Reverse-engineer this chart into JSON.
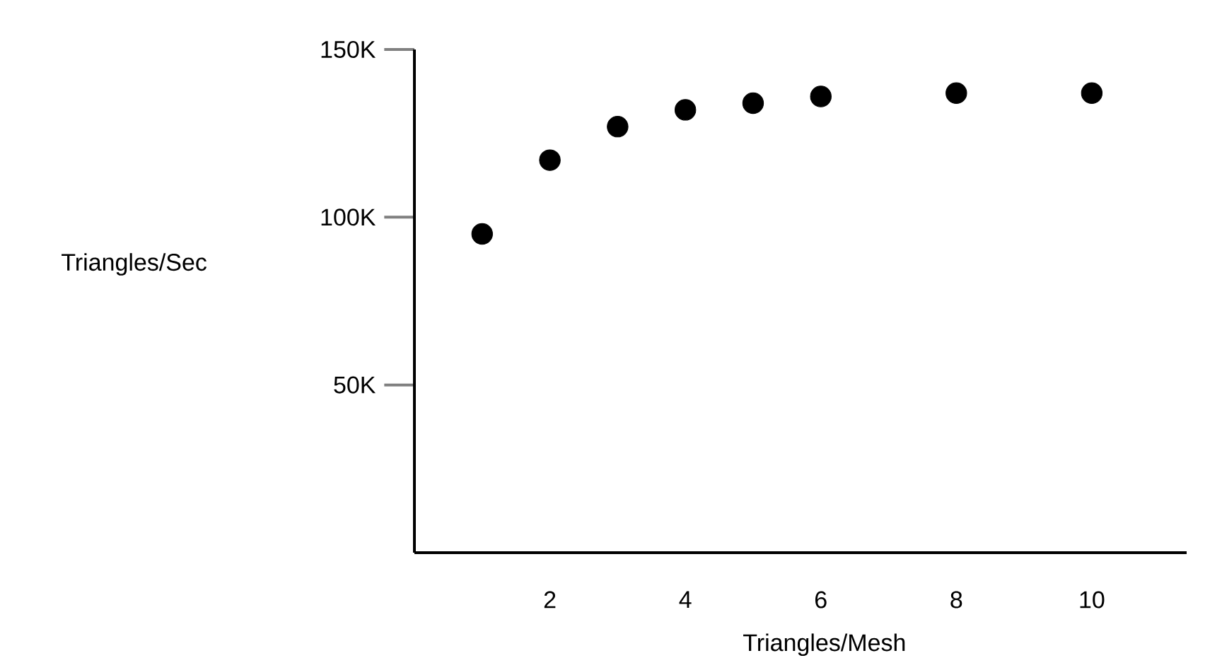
{
  "chart_data": {
    "type": "scatter",
    "xlabel": "Triangles/Mesh",
    "ylabel": "Triangles/Sec",
    "x": [
      1,
      2,
      3,
      4,
      5,
      6,
      8,
      10
    ],
    "values": [
      95000,
      117000,
      127000,
      132000,
      134000,
      136000,
      137000,
      137000
    ],
    "color": "#000000",
    "marker": "circle",
    "xlim": [
      0,
      11.4
    ],
    "ylim": [
      0,
      150000
    ],
    "xticks": [
      2,
      4,
      6,
      8,
      10
    ],
    "yticks": [
      {
        "value": 50000,
        "label": "50K"
      },
      {
        "value": 100000,
        "label": "100K"
      },
      {
        "value": 150000,
        "label": "150K"
      }
    ]
  }
}
